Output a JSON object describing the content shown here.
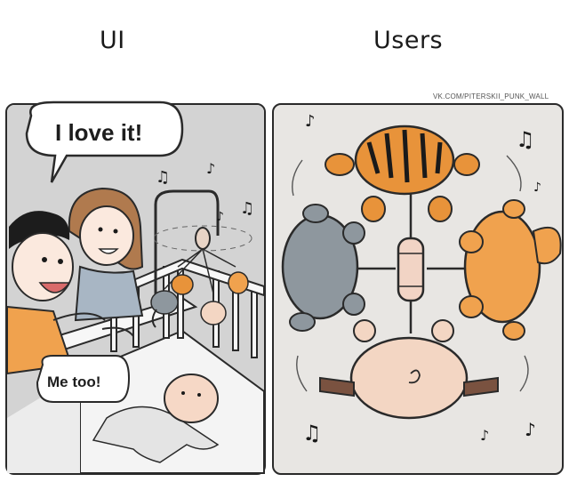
{
  "captions": {
    "left": "UI",
    "right": "Users"
  },
  "credit": "VK.COM/PITERSKII_PUNK_WALL",
  "bubbles": {
    "parent": "I love it!",
    "child": "Me too!"
  },
  "colors": {
    "tiger": "#e8933a",
    "fox": "#f0a24e",
    "elephant": "#8e979e",
    "pig": "#f3d6c3",
    "outline": "#2a2a2a"
  },
  "icons": [
    "music-note-icon"
  ]
}
